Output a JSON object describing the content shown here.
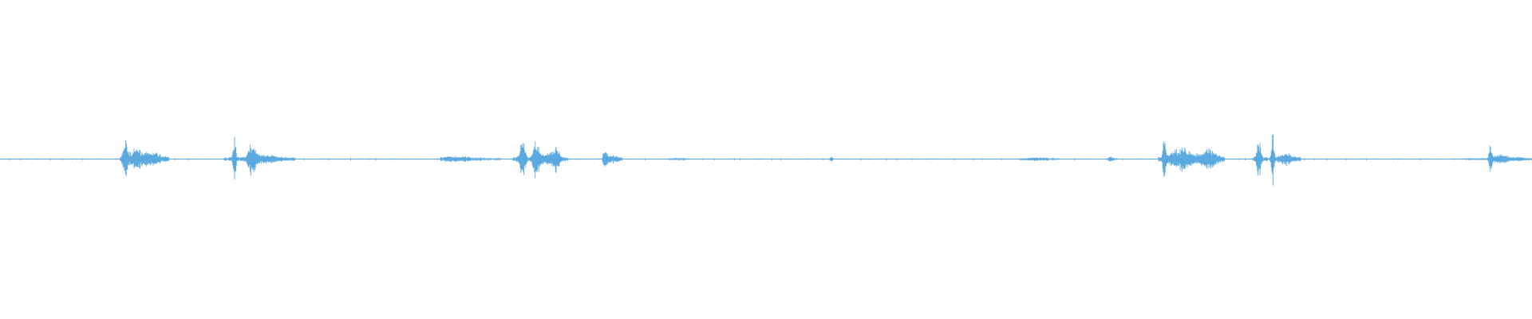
{
  "waveform": {
    "color": "#5aa9e1",
    "background": "#ffffff"
  }
}
